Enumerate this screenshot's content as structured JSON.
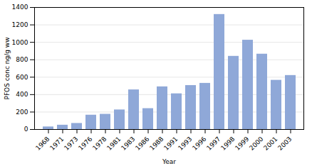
{
  "chart_data": {
    "type": "bar",
    "xlabel": "Year",
    "ylabel": "PFOS conc ng/g ww",
    "categories": [
      "1968",
      "1971",
      "1973",
      "1976",
      "1978",
      "1981",
      "1983",
      "1986",
      "1988",
      "1991",
      "1993",
      "1996",
      "1997",
      "1998",
      "1999",
      "2000",
      "2001",
      "2003"
    ],
    "values": [
      30,
      50,
      70,
      165,
      175,
      225,
      455,
      240,
      490,
      410,
      505,
      530,
      1320,
      840,
      1025,
      865,
      565,
      620
    ],
    "color": "#8fa8d8",
    "ylim": [
      0,
      1400
    ],
    "yticks": [
      0,
      200,
      400,
      600,
      800,
      1000,
      1200,
      1400
    ],
    "grid": true
  }
}
